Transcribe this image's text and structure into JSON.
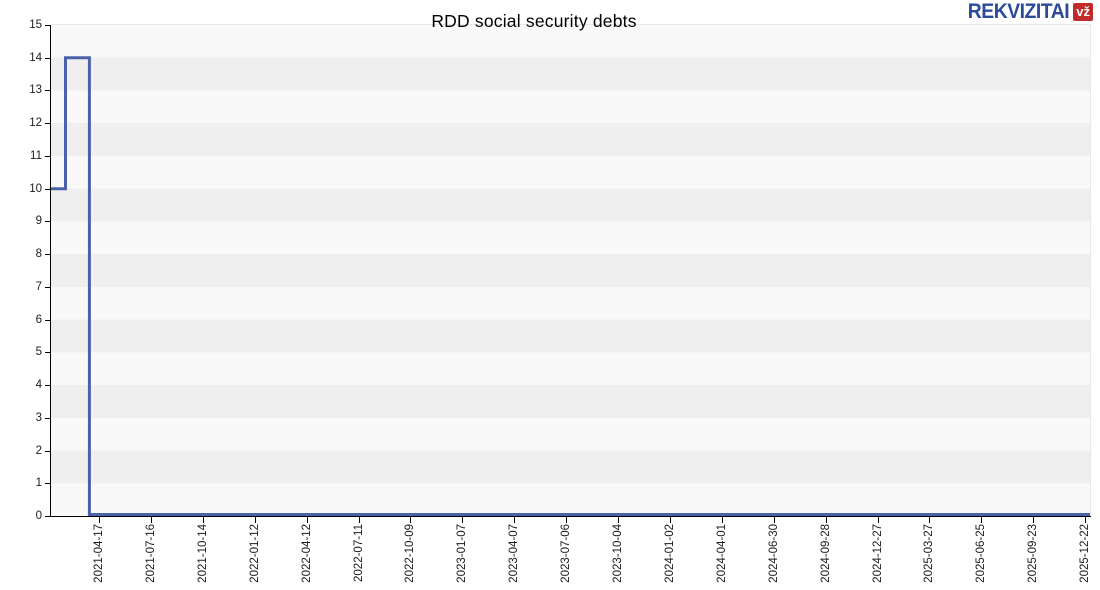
{
  "page": {
    "background": "#ffffff"
  },
  "logo": {
    "brand": "REKVIZITAI",
    "badge": "vž",
    "brand_color": "#2b4a9a",
    "badge_bg": "#c22b2b",
    "badge_fg": "#ffffff"
  },
  "chart_data": {
    "type": "line",
    "title": "RDD social security debts",
    "xlabel": "",
    "ylabel": "",
    "ylim": [
      0,
      15
    ],
    "y_ticks": [
      0,
      1,
      2,
      3,
      4,
      5,
      6,
      7,
      8,
      9,
      10,
      11,
      12,
      13,
      14,
      15
    ],
    "x_tick_labels": [
      "2021-04-17",
      "2021-07-16",
      "2021-10-14",
      "2022-01-12",
      "2022-04-12",
      "2022-07-11",
      "2022-10-09",
      "2023-01-07",
      "2023-04-07",
      "2023-07-06",
      "2023-10-04",
      "2024-01-02",
      "2024-04-01",
      "2024-06-30",
      "2024-09-28",
      "2024-12-27",
      "2025-03-27",
      "2025-06-25",
      "2025-09-23",
      "2025-12-22"
    ],
    "grid": "horizontal alternating bands, one per unit",
    "legend": "none",
    "line_color": "#4c62a8",
    "band_colors": [
      "#f9f9f9",
      "#efefef"
    ],
    "series": [
      {
        "name": "RDD social security debts",
        "interpolation": "step",
        "points": [
          {
            "x_frac": 0.0,
            "value": 10,
            "approx_date": "2021-01-26"
          },
          {
            "x_frac": 0.014,
            "value": 10,
            "approx_date": "2021-02-20"
          },
          {
            "x_frac": 0.014,
            "value": 14,
            "approx_date": "2021-02-20"
          },
          {
            "x_frac": 0.037,
            "value": 14,
            "approx_date": "2021-04-01"
          },
          {
            "x_frac": 0.037,
            "value": 0,
            "approx_date": "2021-04-01"
          },
          {
            "x_frac": 1.0,
            "value": 0,
            "approx_date": "2025-12-31"
          }
        ]
      }
    ]
  }
}
